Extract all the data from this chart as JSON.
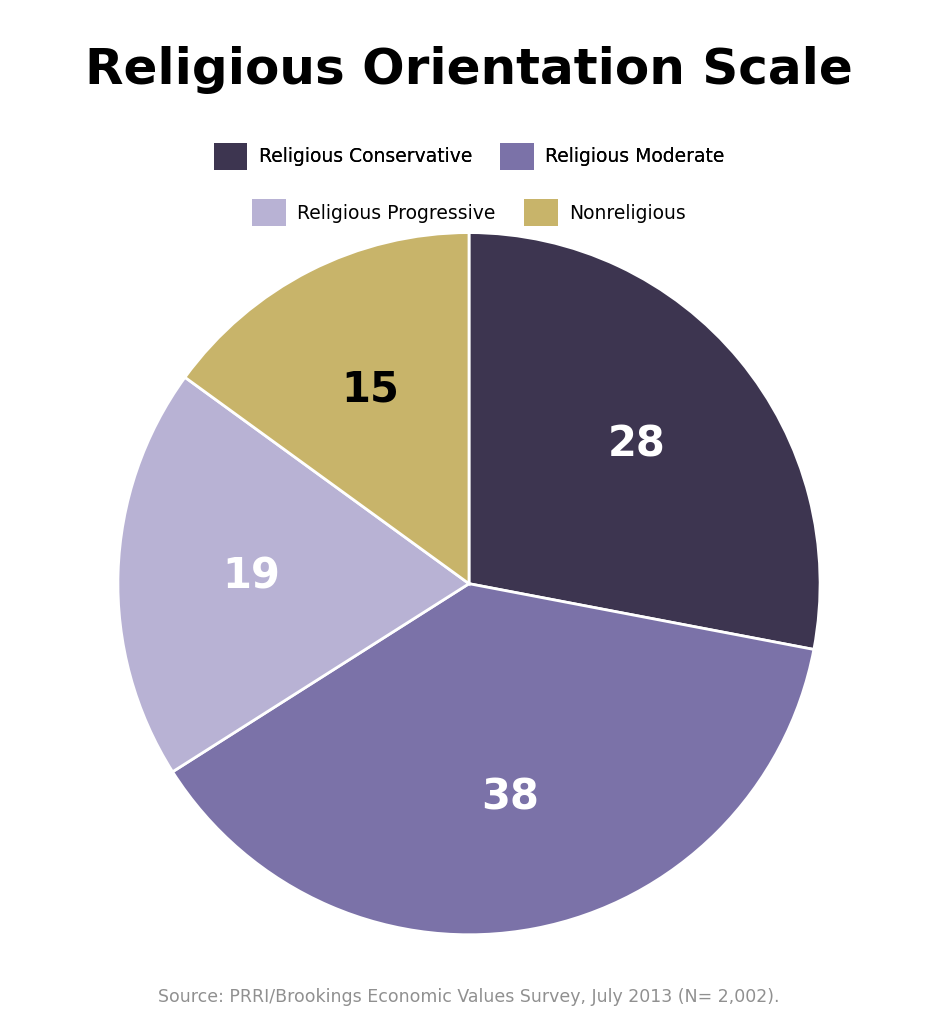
{
  "title": "Religious Orientation Scale",
  "title_fontsize": 36,
  "title_fontweight": "bold",
  "slices": [
    28,
    38,
    19,
    15
  ],
  "labels": [
    "Religious Conservative",
    "Religious Moderate",
    "Religious Progressive",
    "Nonreligious"
  ],
  "colors": [
    "#3d3550",
    "#7b72a8",
    "#b8b2d4",
    "#c8b46a"
  ],
  "label_colors": [
    "white",
    "white",
    "white",
    "black"
  ],
  "label_fontsize": 30,
  "label_fontweight": "bold",
  "legend_labels_row1": [
    "Religious Conservative",
    "Religious Moderate"
  ],
  "legend_labels_row2": [
    "Religious Progressive",
    "Nonreligious"
  ],
  "legend_colors": [
    "#3d3550",
    "#7b72a8",
    "#b8b2d4",
    "#c8b46a"
  ],
  "source_text": "Source: PRRI/Brookings Economic Values Survey, July 2013 (N= 2,002).",
  "source_fontsize": 12.5,
  "background_color": "#ffffff",
  "startangle": 90,
  "wedge_linewidth": 2.0,
  "wedge_linecolor": "white"
}
